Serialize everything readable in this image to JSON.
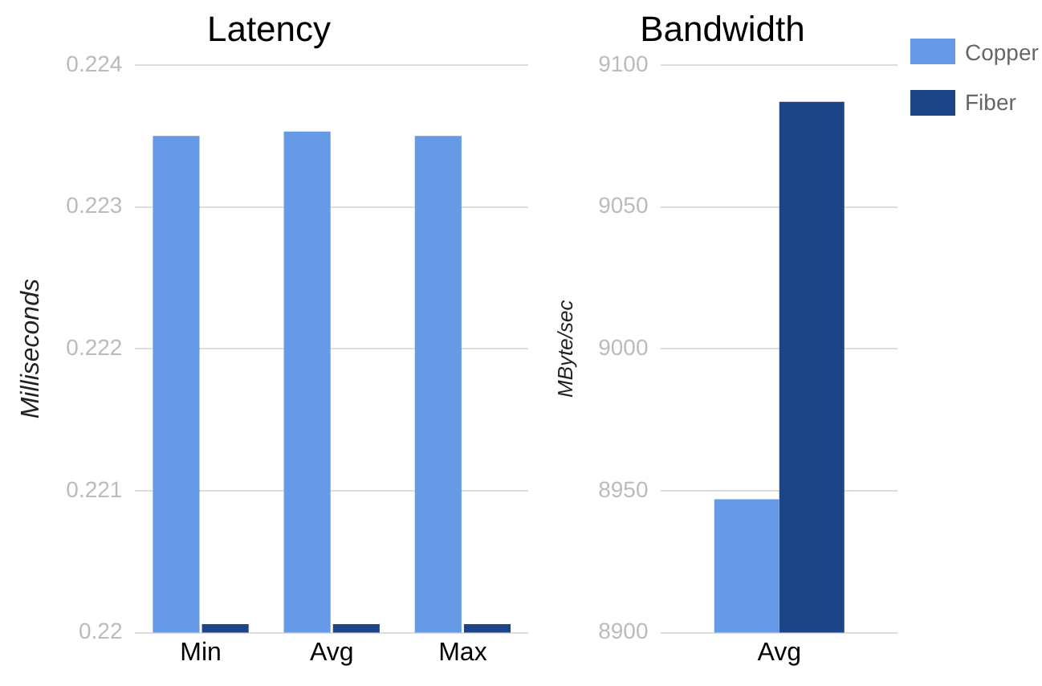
{
  "chart_data": [
    {
      "type": "bar",
      "title": "Latency",
      "ylabel": "Milliseconds",
      "categories": [
        "Min",
        "Avg",
        "Max"
      ],
      "series": [
        {
          "name": "Copper",
          "color": "#6699e6",
          "values": [
            0.2235,
            0.22353,
            0.2235
          ]
        },
        {
          "name": "Fiber",
          "color": "#1c4587",
          "values": [
            0.22006,
            0.22006,
            0.22006
          ]
        }
      ],
      "ylim": [
        0.22,
        0.224
      ],
      "yticks": [
        0.22,
        0.221,
        0.222,
        0.223,
        0.224
      ],
      "grid": "y",
      "legend": "top right"
    },
    {
      "type": "bar",
      "title": "Bandwidth",
      "ylabel": "MByte/sec",
      "categories": [
        "Avg"
      ],
      "series": [
        {
          "color": "#6699e6",
          "values": [
            8947
          ]
        },
        {
          "color": "#1c4587",
          "values": [
            9087
          ]
        }
      ],
      "ylim": [
        8900,
        9100
      ],
      "yticks": [
        8900,
        8950,
        9000,
        9050,
        9100
      ],
      "grid": "y",
      "legend": false
    }
  ]
}
